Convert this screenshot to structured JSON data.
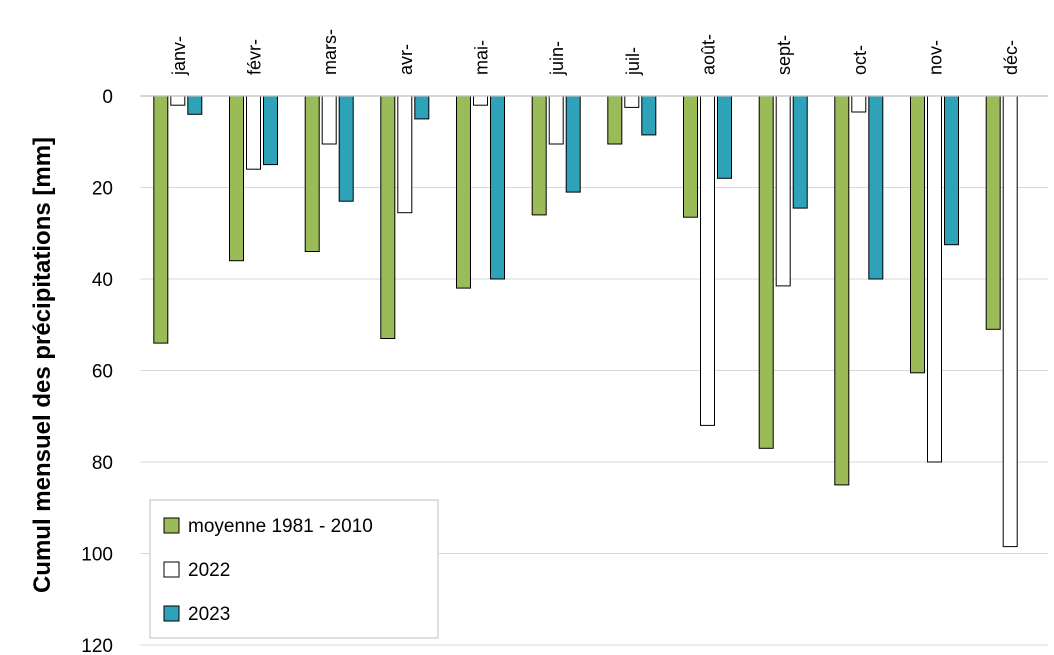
{
  "chart_data": {
    "type": "bar",
    "orientation": "vertical",
    "y_axis_inverted": true,
    "ylabel": "Cumul mensuel des précipitations [mm]",
    "xlabel": "",
    "title": "",
    "ylim": [
      0,
      120
    ],
    "yticks": [
      0,
      20,
      40,
      60,
      80,
      100,
      120
    ],
    "y_tick_labels": [
      "0",
      "20",
      "40",
      "60",
      "80",
      "100",
      "120"
    ],
    "grid": true,
    "legend_position": "bottom-left",
    "categories": [
      "janv-",
      "févr-",
      "mars-",
      "avr-",
      "mai-",
      "juin-",
      "juil-",
      "août-",
      "sept-",
      "oct-",
      "nov-",
      "déc-"
    ],
    "series": [
      {
        "name": "moyenne 1981 - 2010",
        "color": "#9bbb59",
        "values": [
          54,
          36,
          34,
          53,
          42,
          26,
          10.5,
          26.5,
          77,
          85,
          60.5,
          51
        ]
      },
      {
        "name": "2022",
        "color": "#ffffff",
        "values": [
          2,
          16,
          10.5,
          25.5,
          2,
          10.5,
          2.5,
          72,
          41.5,
          3.5,
          80,
          98.5
        ]
      },
      {
        "name": "2023",
        "color": "#2ea2b8",
        "values": [
          4,
          15,
          23,
          5,
          40,
          21,
          8.5,
          18,
          24.5,
          40,
          32.5,
          null
        ]
      }
    ]
  }
}
